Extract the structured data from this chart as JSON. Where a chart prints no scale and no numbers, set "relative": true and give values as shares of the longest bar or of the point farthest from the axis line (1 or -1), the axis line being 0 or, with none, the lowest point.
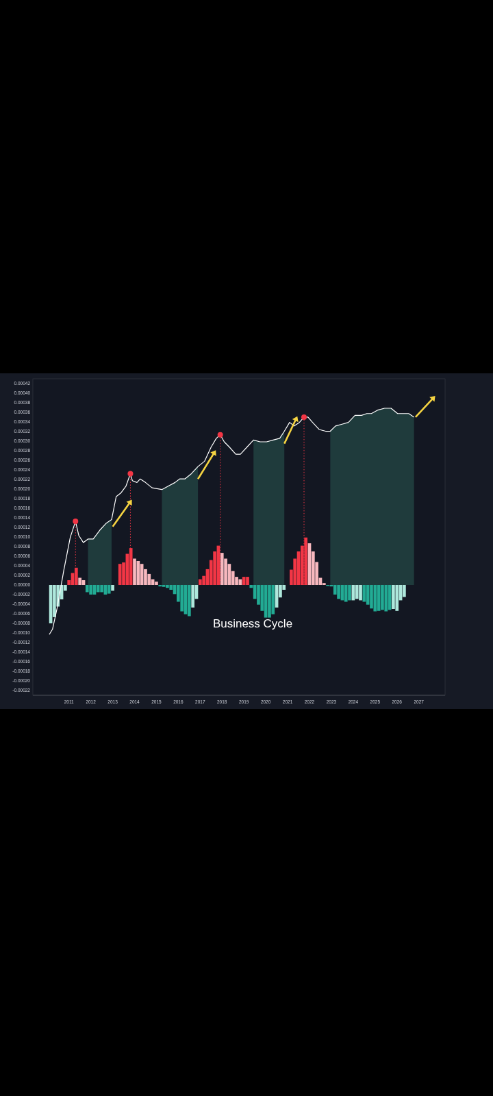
{
  "chart_data": [
    {
      "type": "bar",
      "annotations": [
        "Business Cycle"
      ],
      "x": [
        2010.167,
        2010.333,
        2010.5,
        2010.667,
        2010.833,
        2011,
        2011.167,
        2011.333,
        2011.5,
        2011.667,
        2011.833,
        2012,
        2012.167,
        2012.333,
        2012.5,
        2012.667,
        2012.833,
        2013,
        2013.333,
        2013.5,
        2013.667,
        2013.833,
        2014,
        2014.167,
        2014.333,
        2014.5,
        2014.667,
        2014.833,
        2015,
        2015.167,
        2015.333,
        2015.5,
        2015.667,
        2015.833,
        2016,
        2016.167,
        2016.333,
        2016.5,
        2016.667,
        2016.833,
        2017,
        2017.167,
        2017.333,
        2017.5,
        2017.667,
        2017.833,
        2018,
        2018.167,
        2018.333,
        2018.5,
        2018.667,
        2018.833,
        2019,
        2019.167,
        2019.333,
        2019.5,
        2019.667,
        2019.833,
        2020,
        2020.167,
        2020.333,
        2020.5,
        2020.667,
        2020.833,
        2021.167,
        2021.333,
        2021.5,
        2021.667,
        2021.833,
        2022,
        2022.167,
        2022.333,
        2022.5,
        2022.667,
        2022.833,
        2023,
        2023.167,
        2023.333,
        2023.5,
        2023.667,
        2023.833,
        2024,
        2024.167,
        2024.333,
        2024.5,
        2024.667,
        2024.833,
        2025,
        2025.167,
        2025.333,
        2025.5,
        2025.667,
        2025.833,
        2026,
        2026.167,
        2026.333
      ],
      "values": [
        -8e-05,
        -6.7e-05,
        -4.5e-05,
        -3e-05,
        -1.2e-05,
        1e-05,
        2.5e-05,
        3.6e-05,
        1.5e-05,
        1e-05,
        -1.5e-05,
        -2e-05,
        -2e-05,
        -1.5e-05,
        -1.5e-05,
        -2e-05,
        -1.8e-05,
        -1.2e-05,
        4.4e-05,
        4.7e-05,
        6.5e-05,
        7.7e-05,
        5.5e-05,
        5e-05,
        4.4e-05,
        3.3e-05,
        2.3e-05,
        1.2e-05,
        7e-06,
        -3e-06,
        -4e-06,
        -6e-06,
        -1e-05,
        -1.9e-05,
        -3.5e-05,
        -5.5e-05,
        -6.1e-05,
        -6.5e-05,
        -4.7e-05,
        -2.9e-05,
        1.2e-05,
        1.9e-05,
        3.3e-05,
        5.2e-05,
        7e-05,
        8.2e-05,
        6.7e-05,
        5.5e-05,
        4.4e-05,
        2.9e-05,
        1.7e-05,
        1.2e-05,
        1.7e-05,
        1.7e-05,
        -6e-06,
        -2.9e-05,
        -4.1e-05,
        -5.4e-05,
        -6.8e-05,
        -6.8e-05,
        -6.1e-05,
        -4.7e-05,
        -2.6e-05,
        -1e-05,
        3.2e-05,
        5.5e-05,
        7e-05,
        8.2e-05,
        9.9e-05,
        8.7e-05,
        7e-05,
        4.8e-05,
        1.5e-05,
        4e-06,
        -2e-06,
        -3e-06,
        -2e-05,
        -2.9e-05,
        -3.2e-05,
        -3.5e-05,
        -3.2e-05,
        -3.2e-05,
        -2.9e-05,
        -3.2e-05,
        -3.5e-05,
        -4.1e-05,
        -4.9e-05,
        -5.5e-05,
        -5.4e-05,
        -5.2e-05,
        -5.5e-05,
        -5.2e-05,
        -5e-05,
        -5.4e-05,
        -3.2e-05,
        -2.5e-05
      ],
      "colors": [
        "#aee8dc",
        "#aee8dc",
        "#aee8dc",
        "#aee8dc",
        "#aee8dc",
        "#f23645",
        "#f23645",
        "#f23645",
        "#f7b8be",
        "#f7b8be",
        "#22ab94",
        "#22ab94",
        "#22ab94",
        "#22ab94",
        "#22ab94",
        "#22ab94",
        "#22ab94",
        "#aee8dc",
        "#f23645",
        "#f23645",
        "#f23645",
        "#f23645",
        "#f7b8be",
        "#f7b8be",
        "#f7b8be",
        "#f7b8be",
        "#f7b8be",
        "#f7b8be",
        "#f7b8be",
        "#22ab94",
        "#22ab94",
        "#22ab94",
        "#22ab94",
        "#22ab94",
        "#22ab94",
        "#22ab94",
        "#22ab94",
        "#22ab94",
        "#aee8dc",
        "#aee8dc",
        "#f23645",
        "#f23645",
        "#f23645",
        "#f23645",
        "#f23645",
        "#f23645",
        "#f7b8be",
        "#f7b8be",
        "#f7b8be",
        "#f7b8be",
        "#f7b8be",
        "#f7b8be",
        "#f23645",
        "#f23645",
        "#22ab94",
        "#22ab94",
        "#22ab94",
        "#22ab94",
        "#22ab94",
        "#22ab94",
        "#22ab94",
        "#aee8dc",
        "#aee8dc",
        "#aee8dc",
        "#f23645",
        "#f23645",
        "#f23645",
        "#f23645",
        "#f23645",
        "#f7b8be",
        "#f7b8be",
        "#f7b8be",
        "#f7b8be",
        "#f7b8be",
        "#22ab94",
        "#22ab94",
        "#22ab94",
        "#22ab94",
        "#22ab94",
        "#22ab94",
        "#22ab94",
        "#aee8dc",
        "#aee8dc",
        "#aee8dc",
        "#22ab94",
        "#22ab94",
        "#22ab94",
        "#22ab94",
        "#22ab94",
        "#22ab94",
        "#22ab94",
        "#22ab94",
        "#aee8dc",
        "#aee8dc",
        "#aee8dc",
        "#aee8dc"
      ],
      "xlim": [
        2009.35,
        2028.2
      ],
      "xticks": [
        2011,
        2012,
        2013,
        2014,
        2015,
        2016,
        2017,
        2018,
        2019,
        2020,
        2021,
        2022,
        2023,
        2024,
        2025,
        2026,
        2027
      ],
      "ylim": [
        -0.00023,
        0.00043
      ],
      "yticks": [
        {
          "value": 0.00042,
          "label": "0.00042"
        },
        {
          "value": 0.0004,
          "label": "0.00040"
        },
        {
          "value": 0.00038,
          "label": "0.00038"
        },
        {
          "value": 0.00036,
          "label": "0.00036"
        },
        {
          "value": 0.00034,
          "label": "0.00034"
        },
        {
          "value": 0.00032,
          "label": "0.00032"
        },
        {
          "value": 0.0003,
          "label": "0.00030"
        },
        {
          "value": 0.00028,
          "label": "0.00028"
        },
        {
          "value": 0.00026,
          "label": "0.00026"
        },
        {
          "value": 0.00024,
          "label": "0.00024"
        },
        {
          "value": 0.00022,
          "label": "0.00022"
        },
        {
          "value": 0.0002,
          "label": "0.00020"
        },
        {
          "value": 0.00018,
          "label": "0.00018"
        },
        {
          "value": 0.00016,
          "label": "0.00016"
        },
        {
          "value": 0.00014,
          "label": "0.00014"
        },
        {
          "value": 0.00012,
          "label": "0.00012"
        },
        {
          "value": 0.0001,
          "label": "0.00010"
        },
        {
          "value": 8e-05,
          "label": "0.00008"
        },
        {
          "value": 6e-05,
          "label": "0.00006"
        },
        {
          "value": 4e-05,
          "label": "0.00004"
        },
        {
          "value": 2e-05,
          "label": "0.00002"
        },
        {
          "value": 0,
          "label": "0.00000"
        },
        {
          "value": -2e-05,
          "label": "-0.00002"
        },
        {
          "value": -4e-05,
          "label": "-0.00004"
        },
        {
          "value": -6e-05,
          "label": "-0.00006"
        },
        {
          "value": -8e-05,
          "label": "-0.00008"
        },
        {
          "value": -0.0001,
          "label": "-0.00010"
        },
        {
          "value": -0.00012,
          "label": "-0.00012"
        },
        {
          "value": -0.00014,
          "label": "-0.00014"
        },
        {
          "value": -0.00016,
          "label": "-0.00016"
        },
        {
          "value": -0.00018,
          "label": "-0.00018"
        },
        {
          "value": -0.0002,
          "label": "-0.00020"
        },
        {
          "value": -0.00022,
          "label": "-0.00022"
        }
      ]
    },
    {
      "type": "line",
      "relative": true,
      "xlim": [
        2009.35,
        2028.2
      ],
      "tick_labels": false,
      "series": [
        {
          "type": "area",
          "color": "#1f3b3c",
          "x": [
            2011.87,
            2012.11,
            2012.41,
            2012.71,
            2012.95
          ],
          "values": [
            0.26,
            0.26,
            0.31,
            0.35,
            0.37
          ]
        },
        {
          "type": "area",
          "color": "#1f3b3c",
          "x": [
            2015.25,
            2015.55,
            2015.85,
            2016.06,
            2016.3,
            2016.6,
            2016.9
          ],
          "values": [
            0.54,
            0.56,
            0.58,
            0.6,
            0.6,
            0.63,
            0.67
          ]
        },
        {
          "type": "area",
          "color": "#1f3b3c",
          "x": [
            2019.44,
            2019.74,
            2020.04,
            2020.34,
            2020.64,
            2020.85
          ],
          "values": [
            0.82,
            0.81,
            0.81,
            0.82,
            0.83,
            0.87
          ]
        },
        {
          "type": "area",
          "color": "#1f3b3c",
          "x": [
            2022.95,
            2023.19,
            2023.49,
            2023.78,
            2024.08,
            2024.38,
            2024.62,
            2024.83,
            2025.13,
            2025.43,
            2025.73,
            2026.03,
            2026.33,
            2026.54,
            2026.78
          ],
          "values": [
            0.87,
            0.9,
            0.91,
            0.92,
            0.96,
            0.96,
            0.97,
            0.97,
            0.99,
            1,
            1,
            0.97,
            0.97,
            0.97,
            0.95
          ]
        },
        {
          "color": "#ffffff",
          "x": [
            2010.1,
            2010.25,
            2010.46,
            2010.76,
            2011.06,
            2011.3,
            2011.45,
            2011.66,
            2011.87,
            2012.11,
            2012.41,
            2012.71,
            2012.95,
            2013.16,
            2013.37,
            2013.61,
            2013.81,
            2013.9,
            2014.11,
            2014.26,
            2014.5,
            2014.8,
            2015.25,
            2015.55,
            2015.85,
            2016.06,
            2016.3,
            2016.6,
            2016.9,
            2017.2,
            2017.5,
            2017.74,
            2017.92,
            2018.1,
            2018.34,
            2018.63,
            2018.84,
            2019.14,
            2019.44,
            2019.74,
            2020.04,
            2020.34,
            2020.64,
            2020.85,
            2021.09,
            2021.3,
            2021.54,
            2021.75,
            2021.93,
            2022.14,
            2022.44,
            2022.74,
            2022.95,
            2023.19,
            2023.49,
            2023.78,
            2024.08,
            2024.38,
            2024.62,
            2024.83,
            2025.13,
            2025.43,
            2025.73,
            2026.03,
            2026.33,
            2026.54,
            2026.78
          ],
          "values": [
            -0.28,
            -0.25,
            -0.13,
            0.08,
            0.27,
            0.36,
            0.28,
            0.24,
            0.26,
            0.26,
            0.31,
            0.35,
            0.37,
            0.5,
            0.52,
            0.56,
            0.63,
            0.59,
            0.58,
            0.6,
            0.58,
            0.55,
            0.54,
            0.56,
            0.58,
            0.6,
            0.6,
            0.63,
            0.67,
            0.7,
            0.78,
            0.83,
            0.85,
            0.81,
            0.78,
            0.74,
            0.74,
            0.78,
            0.82,
            0.81,
            0.81,
            0.82,
            0.83,
            0.87,
            0.92,
            0.9,
            0.92,
            0.95,
            0.95,
            0.92,
            0.88,
            0.87,
            0.87,
            0.9,
            0.91,
            0.92,
            0.96,
            0.96,
            0.97,
            0.97,
            0.99,
            1,
            1,
            0.97,
            0.97,
            0.97,
            0.95
          ]
        },
        {
          "type": "scatter",
          "marker": "circle",
          "color": "#f23645",
          "x": [
            2011.3,
            2013.81,
            2017.92,
            2021.75
          ],
          "values": [
            0.36,
            0.63,
            0.85,
            0.95
          ]
        }
      ],
      "ref_lines": [
        {
          "axis": "x",
          "value": 2011.3,
          "color": "#f23645",
          "line_style": "dotted"
        },
        {
          "axis": "x",
          "value": 2013.81,
          "color": "#f23645",
          "line_style": "dotted"
        },
        {
          "axis": "x",
          "value": 2017.92,
          "color": "#f23645",
          "line_style": "dotted"
        },
        {
          "axis": "x",
          "value": 2021.75,
          "color": "#f23645",
          "line_style": "dotted"
        }
      ]
    }
  ]
}
